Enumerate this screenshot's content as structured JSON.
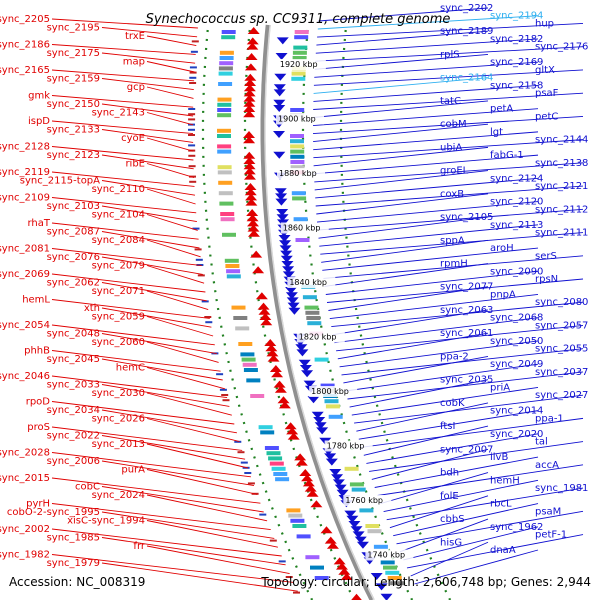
{
  "title": "Synechococcus sp. CC9311, complete genome",
  "accession": "Accession: NC_008319",
  "topology": "Topology: circular; Length: 2,606,748 bp; Genes: 2,944",
  "colors": {
    "left_strand": "#e00000",
    "right_strand": "#1010d0",
    "highlight": "#30b0f0",
    "backbone": "#909090",
    "dots": "#208020"
  },
  "kbp_ticks": [
    "1920 kbp",
    "1900 kbp",
    "1880 kbp",
    "1860 kbp",
    "1840 kbp",
    "1820 kbp",
    "1800 kbp",
    "1780 kbp",
    "1760 kbp",
    "1740 kbp"
  ],
  "left_labels": [
    "sync_2205",
    "sync_2195",
    "trxE",
    "sync_2186",
    "sync_2175",
    "map",
    "sync_2165",
    "sync_2159",
    "gcp",
    "gmk",
    "sync_2150",
    "sync_2143",
    "ispD",
    "sync_2133",
    "cyoE",
    "sync_2128",
    "sync_2123",
    "ribE",
    "sync_2119",
    "sync_2115-topA",
    "sync_2110",
    "sync_2109",
    "sync_2103",
    "sync_2104",
    "rhaT",
    "sync_2087",
    "sync_2084",
    "sync_2081",
    "sync_2076",
    "sync_2079",
    "sync_2069",
    "sync_2062",
    "sync_2071",
    "hemL",
    "xth",
    "sync_2059",
    "sync_2054",
    "sync_2048",
    "sync_2060",
    "phhB",
    "sync_2045",
    "hemC",
    "sync_2046",
    "sync_2033",
    "sync_2030",
    "rpoD",
    "sync_2034",
    "sync_2026",
    "proS",
    "sync_2022",
    "sync_2013",
    "sync_2028",
    "sync_2006",
    "purA",
    "sync_2015",
    "cobC",
    "sync_2024",
    "pyrH",
    "cobO-2-sync_1995",
    "xisC-sync_1994",
    "sync_2002",
    "sync_1985",
    "frr",
    "sync_1982",
    "sync_1979"
  ],
  "right_labels": [
    "sync_2202",
    "sync_2194",
    "hup",
    "sync_2189",
    "sync_2182",
    "sync_2176",
    "rplS",
    "sync_2169",
    "gltX",
    "sync_2164",
    "sync_2158",
    "psaF",
    "tatC",
    "petA",
    "petC",
    "cobM",
    "lgt",
    "sync_2144",
    "ubiA",
    "fabG-1",
    "sync_2138",
    "groEL",
    "sync_2124",
    "sync_2121",
    "coxB",
    "sync_2120",
    "sync_2112",
    "sync_2105",
    "sync_2113",
    "sync_2111",
    "sppA",
    "aroH",
    "serS",
    "rpmH",
    "sync_2090",
    "rpsN",
    "sync_2077",
    "pnpA",
    "sync_2080",
    "sync_2063",
    "sync_2068",
    "sync_2057",
    "sync_2061",
    "sync_2050",
    "sync_2055",
    "ppa-2",
    "sync_2049",
    "sync_2037",
    "sync_2035",
    "priA",
    "sync_2027",
    "cobK",
    "sync_2014",
    "ppa-1",
    "ftsI",
    "sync_2020",
    "tal",
    "sync_2007",
    "ilvB",
    "accA",
    "bdh",
    "hemH",
    "sync_1981",
    "folE",
    "rbcL",
    "psaM",
    "cbbS",
    "sync_1962",
    "petF-1",
    "hisG",
    "dnaA"
  ]
}
